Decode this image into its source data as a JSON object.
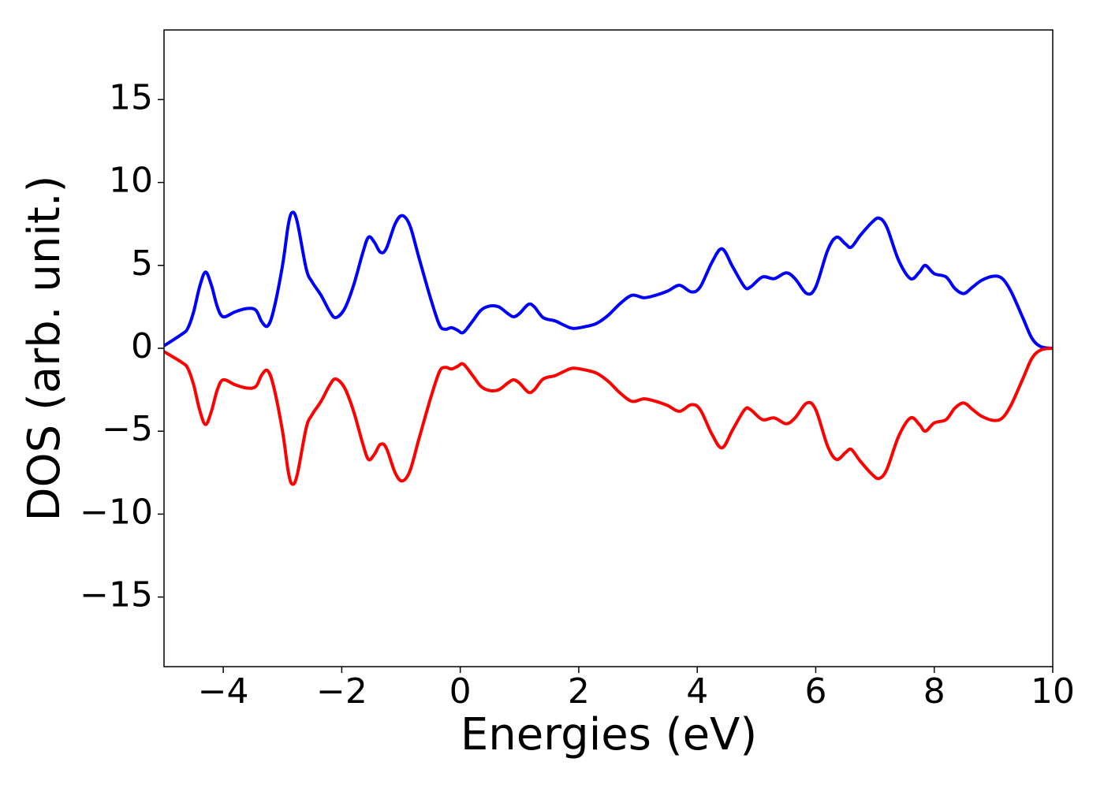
{
  "chart_data": {
    "type": "line",
    "xlabel": "Energies (eV)",
    "ylabel": "DOS (arb. unit.)",
    "x": [
      -5,
      -4.7,
      -4.6,
      -4.5,
      -4.4,
      -4.3,
      -4.2,
      -4.1,
      -4.0,
      -3.8,
      -3.6,
      -3.45,
      -3.35,
      -3.25,
      -3.15,
      -3.0,
      -2.9,
      -2.83,
      -2.75,
      -2.6,
      -2.5,
      -2.35,
      -2.2,
      -2.1,
      -1.95,
      -1.8,
      -1.65,
      -1.55,
      -1.45,
      -1.35,
      -1.25,
      -1.1,
      -0.98,
      -0.85,
      -0.7,
      -0.5,
      -0.35,
      -0.25,
      -0.15,
      -0.05,
      0.05,
      0.2,
      0.35,
      0.5,
      0.65,
      0.8,
      0.9,
      1.0,
      1.15,
      1.25,
      1.4,
      1.6,
      1.75,
      1.9,
      2.1,
      2.3,
      2.5,
      2.7,
      2.9,
      3.1,
      3.3,
      3.5,
      3.7,
      3.9,
      4.05,
      4.25,
      4.42,
      4.6,
      4.8,
      4.9,
      5.1,
      5.3,
      5.5,
      5.65,
      5.85,
      6.0,
      6.2,
      6.35,
      6.5,
      6.6,
      6.75,
      6.95,
      7.07,
      7.2,
      7.4,
      7.6,
      7.75,
      7.85,
      8.0,
      8.2,
      8.35,
      8.5,
      8.65,
      8.8,
      9.0,
      9.15,
      9.3,
      9.5,
      9.65,
      9.8,
      10
    ],
    "series": [
      {
        "color": "#0000ff",
        "values": [
          0.15,
          0.85,
          1.2,
          2.2,
          3.7,
          4.6,
          3.8,
          2.5,
          1.9,
          2.2,
          2.4,
          2.3,
          1.6,
          1.35,
          2.3,
          5.0,
          7.5,
          8.2,
          7.6,
          4.8,
          4.0,
          3.2,
          2.2,
          1.85,
          2.4,
          3.8,
          5.7,
          6.7,
          6.4,
          5.8,
          6.0,
          7.5,
          8.0,
          7.4,
          5.5,
          3.0,
          1.4,
          1.15,
          1.25,
          1.1,
          0.95,
          1.6,
          2.3,
          2.55,
          2.5,
          2.1,
          1.9,
          2.1,
          2.65,
          2.5,
          1.85,
          1.65,
          1.4,
          1.2,
          1.3,
          1.5,
          2.0,
          2.7,
          3.2,
          3.05,
          3.2,
          3.45,
          3.8,
          3.4,
          3.7,
          5.2,
          6.0,
          4.9,
          3.7,
          3.7,
          4.3,
          4.2,
          4.55,
          4.2,
          3.3,
          3.7,
          5.9,
          6.7,
          6.3,
          6.1,
          6.8,
          7.6,
          7.85,
          7.3,
          5.3,
          4.2,
          4.6,
          5.0,
          4.5,
          4.3,
          3.6,
          3.3,
          3.7,
          4.1,
          4.35,
          4.2,
          3.4,
          1.8,
          0.6,
          0.1,
          0.0
        ]
      },
      {
        "color": "#ff0000",
        "values": [
          -0.2,
          -0.85,
          -1.2,
          -2.2,
          -3.7,
          -4.6,
          -3.8,
          -2.5,
          -1.9,
          -2.2,
          -2.4,
          -2.3,
          -1.6,
          -1.35,
          -2.3,
          -5.0,
          -7.5,
          -8.2,
          -7.6,
          -4.8,
          -4.0,
          -3.2,
          -2.2,
          -1.85,
          -2.4,
          -3.8,
          -5.7,
          -6.7,
          -6.4,
          -5.8,
          -6.0,
          -7.5,
          -8.0,
          -7.4,
          -5.5,
          -3.0,
          -1.4,
          -1.15,
          -1.25,
          -1.1,
          -0.95,
          -1.6,
          -2.3,
          -2.55,
          -2.5,
          -2.1,
          -1.9,
          -2.1,
          -2.65,
          -2.5,
          -1.85,
          -1.65,
          -1.4,
          -1.2,
          -1.3,
          -1.5,
          -2.0,
          -2.7,
          -3.2,
          -3.05,
          -3.2,
          -3.45,
          -3.8,
          -3.4,
          -3.7,
          -5.2,
          -6.0,
          -4.9,
          -3.7,
          -3.7,
          -4.3,
          -4.2,
          -4.55,
          -4.2,
          -3.3,
          -3.7,
          -5.9,
          -6.7,
          -6.3,
          -6.1,
          -6.8,
          -7.6,
          -7.85,
          -7.3,
          -5.3,
          -4.2,
          -4.6,
          -5.0,
          -4.5,
          -4.3,
          -3.6,
          -3.3,
          -3.7,
          -4.1,
          -4.35,
          -4.2,
          -3.4,
          -1.8,
          -0.6,
          -0.1,
          0.0
        ]
      }
    ],
    "xlim": [
      -5,
      10
    ],
    "xticks": [
      {
        "value": -4,
        "label": "−4"
      },
      {
        "value": -2,
        "label": "−2"
      },
      0,
      2,
      4,
      6,
      8,
      10
    ],
    "ylim": [
      -19.2,
      19.2
    ],
    "yticks": [
      {
        "value": -15,
        "label": "−15"
      },
      {
        "value": -10,
        "label": "−10"
      },
      {
        "value": -5,
        "label": "−5"
      },
      0,
      5,
      10,
      15
    ],
    "grid": false
  }
}
